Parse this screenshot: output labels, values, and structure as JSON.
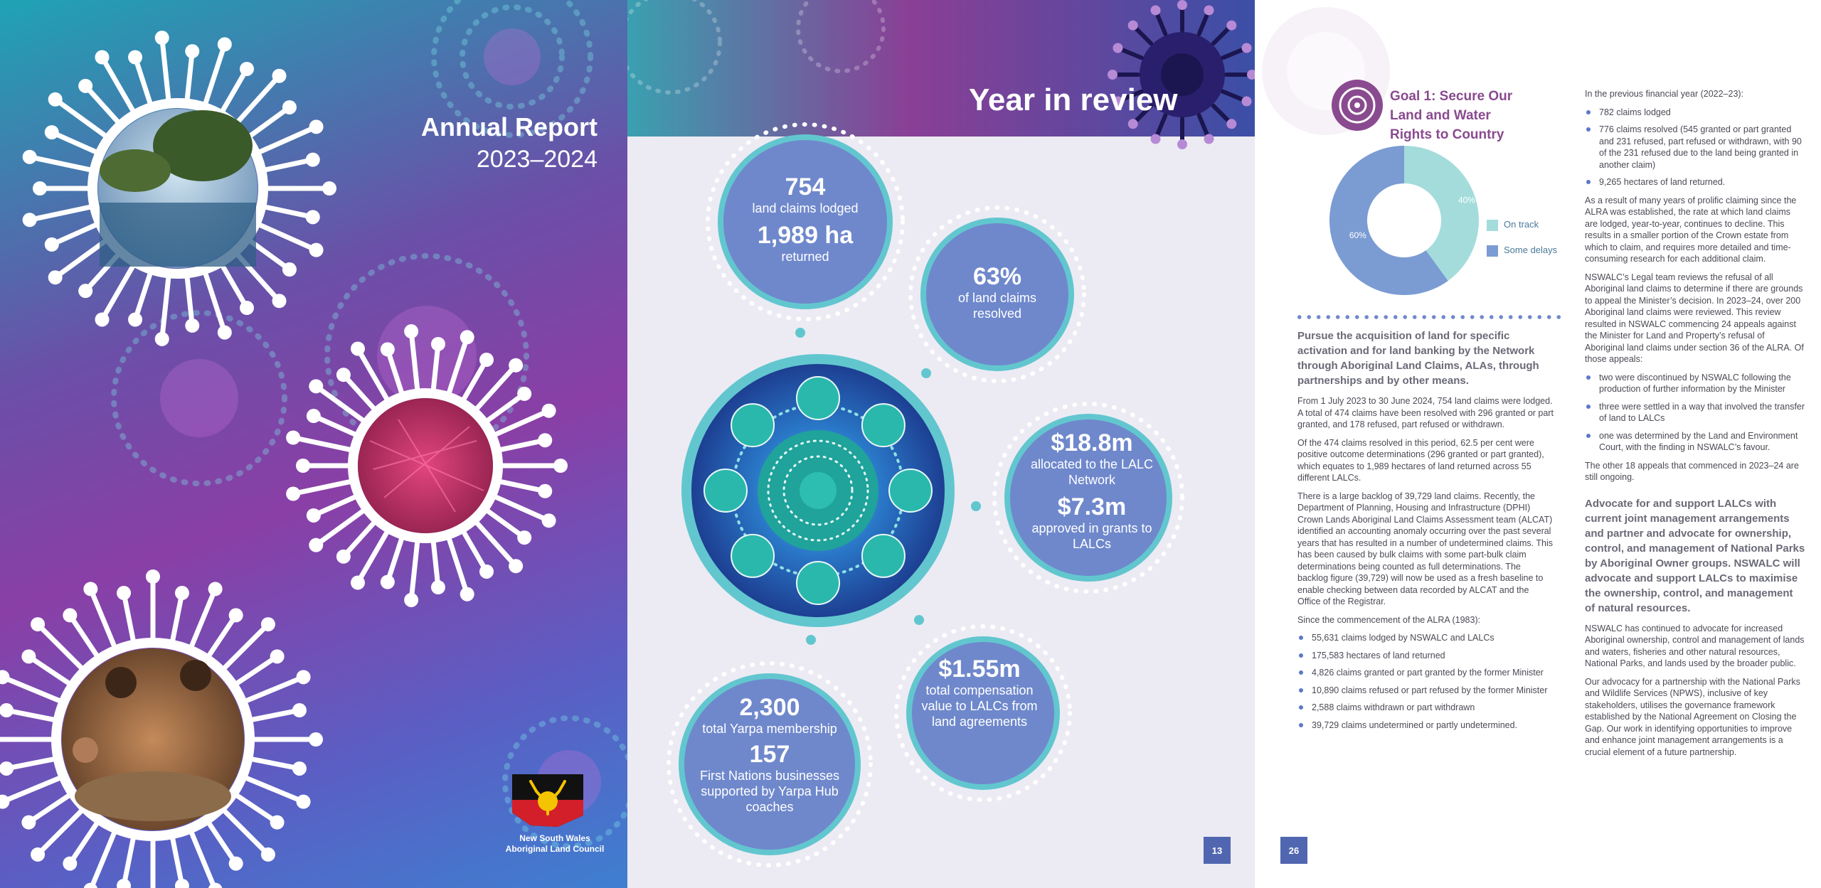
{
  "cover": {
    "title": "Annual Report",
    "years": "2023–2024",
    "logo_caption_line1": "New South Wales",
    "logo_caption_line2": "Aboriginal Land Council",
    "photos": [
      "river-photo",
      "red-fibre-photo",
      "weaving-people-photo"
    ]
  },
  "review": {
    "title": "Year in review",
    "page_number": "13",
    "stats": [
      {
        "big": "754",
        "small": "land claims lodged",
        "big2": "1,989 ha",
        "small2": "returned"
      },
      {
        "big": "63%",
        "small": "of land claims resolved"
      },
      {
        "big": "$18.8m",
        "small": "allocated to the LALC Network",
        "big2": "$7.3m",
        "small2": "approved in grants to LALCs"
      },
      {
        "big": "$1.55m",
        "small": "total compensation value to LALCs from land agreements"
      },
      {
        "big": "2,300",
        "small": "total Yarpa membership",
        "big2": "157",
        "small2": "First Nations businesses supported by Yarpa Hub coaches"
      }
    ]
  },
  "goal": {
    "page_number": "26",
    "title": "Goal 1: Secure Our Land and Water Rights to Country",
    "chart_data": {
      "type": "pie",
      "slices": [
        {
          "label": "On track",
          "value": 40,
          "color": "#a4dcdc"
        },
        {
          "label": "Some delays",
          "value": 60,
          "color": "#7b9bd3"
        }
      ],
      "slice_labels": [
        "40%",
        "60%"
      ],
      "legend": "right"
    },
    "left": {
      "lead": "Pursue the acquisition of land for specific activation and for land banking by the Network through Aboriginal Land Claims, ALAs, through partnerships and by other means.",
      "p1": "From 1 July 2023 to 30 June 2024, 754 land claims were lodged. A total of 474 claims have been resolved with 296 granted or part granted, and 178 refused, part refused or withdrawn.",
      "p2": "Of the 474 claims resolved in this period, 62.5 per cent were positive outcome determinations (296 granted or part granted), which equates to 1,989 hectares of land returned across 55 different LALCs.",
      "p3": "There is a large backlog of 39,729 land claims. Recently, the Department of Planning, Housing and Infrastructure (DPHI) Crown Lands Aboriginal Land Claims Assessment team (ALCAT) identified an accounting anomaly occurring over the past several years that has resulted in a number of undetermined claims. This has been caused by bulk claims with some part-bulk claim determinations being counted as full determinations. The backlog figure (39,729) will now be used as a fresh baseline to enable checking between data recorded by ALCAT and the Office of the Registrar.",
      "p4": "Since the commencement of the ALRA (1983):",
      "bullets": [
        "55,631 claims lodged by NSWALC and LALCs",
        "175,583 hectares of land returned",
        "4,826 claims granted or part granted by the former Minister",
        "10,890 claims refused or part refused by the former Minister",
        "2,588 claims withdrawn or part withdrawn",
        "39,729 claims undetermined or partly undetermined."
      ]
    },
    "right": {
      "p0": "In the previous financial year (2022–23):",
      "bullets1": [
        "782 claims lodged",
        "776 claims resolved (545 granted or part granted and 231 refused, part refused or withdrawn, with 90 of the 231 refused due to the land being granted in another claim)",
        "9,265 hectares of land returned."
      ],
      "p1": "As a result of many years of prolific claiming since the ALRA was established, the rate at which land claims are lodged, year-to-year, continues to decline. This results in a smaller portion of the Crown estate from which to claim, and requires more detailed and time-consuming research for each additional claim.",
      "p2": "NSWALC’s Legal team reviews the refusal of all Aboriginal land claims to determine if there are grounds to appeal the Minister’s decision. In 2023–24, over 200 Aboriginal land claims were reviewed. This review resulted in NSWALC commencing 24 appeals against the Minister for Land and Property’s refusal of Aboriginal land claims under section 36 of the ALRA. Of those appeals:",
      "bullets2": [
        "two were discontinued by NSWALC following the production of further information by the Minister",
        "three were settled in a way that involved the transfer of land to LALCs",
        "one was determined by the Land and Environment Court, with the finding in NSWALC’s favour."
      ],
      "p3": "The other 18 appeals that commenced in 2023–24 are still ongoing.",
      "lead": "Advocate for and support LALCs with current joint management arrangements and partner and advocate for ownership, control, and management of National Parks by Aboriginal Owner groups.  NSWALC will advocate and support LALCs to maximise the ownership, control, and management of natural resources.",
      "p4": "NSWALC has continued to advocate for increased Aboriginal ownership, control and management of lands and waters, fisheries and other natural resources, National Parks, and lands used by the broader public.",
      "p5": "Our advocacy for a partnership with the National Parks and Wildlife Services (NPWS), inclusive of key stakeholders, utilises the governance framework established by the National Agreement on Closing the Gap. Our work in identifying opportunities to improve and enhance joint management arrangements is a crucial element of a future partnership."
    }
  }
}
